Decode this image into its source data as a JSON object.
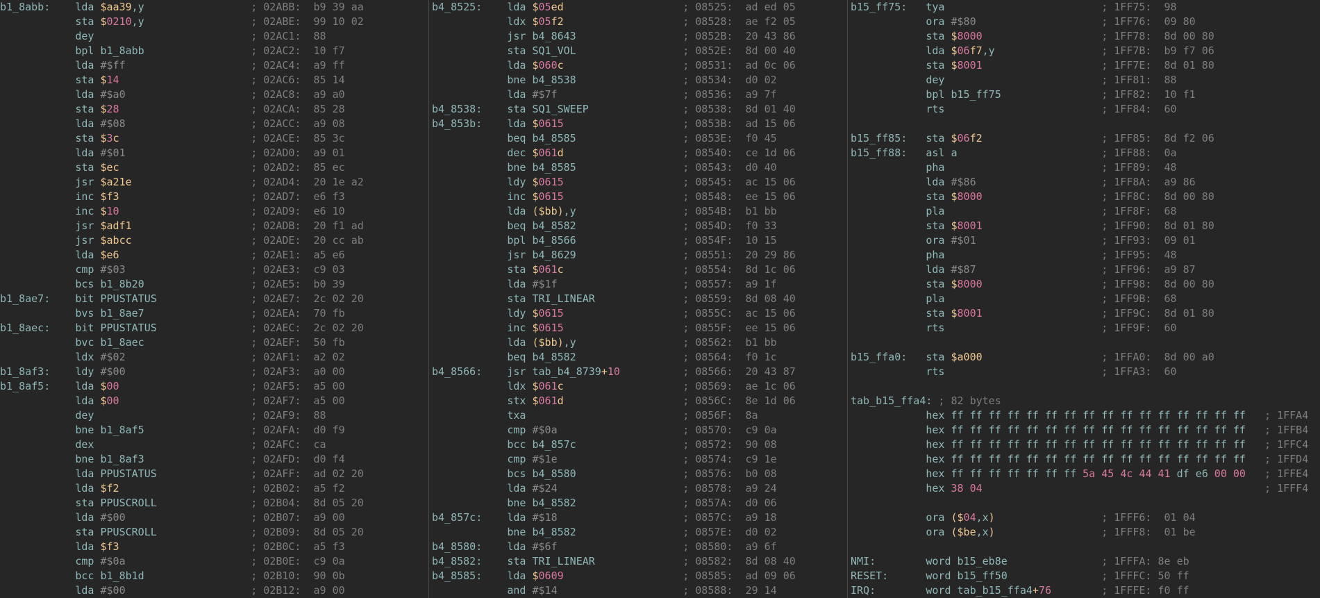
{
  "colors": {
    "background": "#262626",
    "text": "#8fb8b8",
    "address": "#f0c890",
    "number": "#d9789f",
    "comment": "#7e7e7e"
  },
  "columns": [
    {
      "lines": [
        {
          "label": "b1_8abb:",
          "op": "lda $aa39,y",
          "comment": "; 02ABB:  b9 39 aa"
        },
        {
          "op": "sta $0210,y",
          "comment": "; 02ABE:  99 10 02"
        },
        {
          "op": "dey",
          "comment": "; 02AC1:  88"
        },
        {
          "op": "bpl b1_8abb",
          "comment": "; 02AC2:  10 f7"
        },
        {
          "op": "lda #$ff",
          "comment": "; 02AC4:  a9 ff"
        },
        {
          "op": "sta $14",
          "comment": "; 02AC6:  85 14"
        },
        {
          "op": "lda #$a0",
          "comment": "; 02AC8:  a9 a0"
        },
        {
          "op": "sta $28",
          "comment": "; 02ACA:  85 28"
        },
        {
          "op": "lda #$08",
          "comment": "; 02ACC:  a9 08"
        },
        {
          "op": "sta $3c",
          "comment": "; 02ACE:  85 3c"
        },
        {
          "op": "lda #$01",
          "comment": "; 02AD0:  a9 01"
        },
        {
          "op": "sta $ec",
          "comment": "; 02AD2:  85 ec"
        },
        {
          "op": "jsr $a21e",
          "comment": "; 02AD4:  20 1e a2"
        },
        {
          "op": "inc $f3",
          "comment": "; 02AD7:  e6 f3"
        },
        {
          "op": "inc $10",
          "comment": "; 02AD9:  e6 10"
        },
        {
          "op": "jsr $adf1",
          "comment": "; 02ADB:  20 f1 ad"
        },
        {
          "op": "jsr $abcc",
          "comment": "; 02ADE:  20 cc ab"
        },
        {
          "op": "lda $e6",
          "comment": "; 02AE1:  a5 e6"
        },
        {
          "op": "cmp #$03",
          "comment": "; 02AE3:  c9 03"
        },
        {
          "op": "bcs b1_8b20",
          "comment": "; 02AE5:  b0 39"
        },
        {
          "label": "b1_8ae7:",
          "op": "bit PPUSTATUS",
          "comment": "; 02AE7:  2c 02 20"
        },
        {
          "op": "bvs b1_8ae7",
          "comment": "; 02AEA:  70 fb"
        },
        {
          "label": "b1_8aec:",
          "op": "bit PPUSTATUS",
          "comment": "; 02AEC:  2c 02 20"
        },
        {
          "op": "bvc b1_8aec",
          "comment": "; 02AEF:  50 fb"
        },
        {
          "op": "ldx #$02",
          "comment": "; 02AF1:  a2 02"
        },
        {
          "label": "b1_8af3:",
          "op": "ldy #$00",
          "comment": "; 02AF3:  a0 00"
        },
        {
          "label": "b1_8af5:",
          "op": "lda $00",
          "comment": "; 02AF5:  a5 00"
        },
        {
          "op": "lda $00",
          "comment": "; 02AF7:  a5 00"
        },
        {
          "op": "dey",
          "comment": "; 02AF9:  88"
        },
        {
          "op": "bne b1_8af5",
          "comment": "; 02AFA:  d0 f9"
        },
        {
          "op": "dex",
          "comment": "; 02AFC:  ca"
        },
        {
          "op": "bne b1_8af3",
          "comment": "; 02AFD:  d0 f4"
        },
        {
          "op": "lda PPUSTATUS",
          "comment": "; 02AFF:  ad 02 20"
        },
        {
          "op": "lda $f2",
          "comment": "; 02B02:  a5 f2"
        },
        {
          "op": "sta PPUSCROLL",
          "comment": "; 02B04:  8d 05 20"
        },
        {
          "op": "lda #$00",
          "comment": "; 02B07:  a9 00"
        },
        {
          "op": "sta PPUSCROLL",
          "comment": "; 02B09:  8d 05 20"
        },
        {
          "op": "lda $f3",
          "comment": "; 02B0C:  a5 f3"
        },
        {
          "op": "cmp #$0a",
          "comment": "; 02B0E:  c9 0a"
        },
        {
          "op": "bcc b1_8b1d",
          "comment": "; 02B10:  90 0b"
        },
        {
          "op": "lda #$00",
          "comment": "; 02B12:  a9 00"
        }
      ]
    },
    {
      "lines": [
        {
          "label": "b4_8525:",
          "op": "lda $05ed",
          "comment": "; 08525:  ad ed 05"
        },
        {
          "op": "ldx $05f2",
          "comment": "; 08528:  ae f2 05"
        },
        {
          "op": "jsr b4_8643",
          "comment": "; 0852B:  20 43 86"
        },
        {
          "op": "sta SQ1_VOL",
          "comment": "; 0852E:  8d 00 40"
        },
        {
          "op": "lda $060c",
          "comment": "; 08531:  ad 0c 06"
        },
        {
          "op": "bne b4_8538",
          "comment": "; 08534:  d0 02"
        },
        {
          "op": "lda #$7f",
          "comment": "; 08536:  a9 7f"
        },
        {
          "label": "b4_8538:",
          "op": "sta SQ1_SWEEP",
          "comment": "; 08538:  8d 01 40"
        },
        {
          "label": "b4_853b:",
          "op": "lda $0615",
          "comment": "; 0853B:  ad 15 06"
        },
        {
          "op": "beq b4_8585",
          "comment": "; 0853E:  f0 45"
        },
        {
          "op": "dec $061d",
          "comment": "; 08540:  ce 1d 06"
        },
        {
          "op": "bne b4_8585",
          "comment": "; 08543:  d0 40"
        },
        {
          "op": "ldy $0615",
          "comment": "; 08545:  ac 15 06"
        },
        {
          "op": "inc $0615",
          "comment": "; 08548:  ee 15 06"
        },
        {
          "op": "lda ($bb),y",
          "comment": "; 0854B:  b1 bb"
        },
        {
          "op": "beq b4_8582",
          "comment": "; 0854D:  f0 33"
        },
        {
          "op": "bpl b4_8566",
          "comment": "; 0854F:  10 15"
        },
        {
          "op": "jsr b4_8629",
          "comment": "; 08551:  20 29 86"
        },
        {
          "op": "sta $061c",
          "comment": "; 08554:  8d 1c 06"
        },
        {
          "op": "lda #$1f",
          "comment": "; 08557:  a9 1f"
        },
        {
          "op": "sta TRI_LINEAR",
          "comment": "; 08559:  8d 08 40"
        },
        {
          "op": "ldy $0615",
          "comment": "; 0855C:  ac 15 06"
        },
        {
          "op": "inc $0615",
          "comment": "; 0855F:  ee 15 06"
        },
        {
          "op": "lda ($bb),y",
          "comment": "; 08562:  b1 bb"
        },
        {
          "op": "beq b4_8582",
          "comment": "; 08564:  f0 1c"
        },
        {
          "label": "b4_8566:",
          "op": "jsr tab_b4_8739+10",
          "comment": "; 08566:  20 43 87"
        },
        {
          "op": "ldx $061c",
          "comment": "; 08569:  ae 1c 06"
        },
        {
          "op": "stx $061d",
          "comment": "; 0856C:  8e 1d 06"
        },
        {
          "op": "txa",
          "comment": "; 0856F:  8a"
        },
        {
          "op": "cmp #$0a",
          "comment": "; 08570:  c9 0a"
        },
        {
          "op": "bcc b4_857c",
          "comment": "; 08572:  90 08"
        },
        {
          "op": "cmp #$1e",
          "comment": "; 08574:  c9 1e"
        },
        {
          "op": "bcs b4_8580",
          "comment": "; 08576:  b0 08"
        },
        {
          "op": "lda #$24",
          "comment": "; 08578:  a9 24"
        },
        {
          "op": "bne b4_8582",
          "comment": "; 0857A:  d0 06"
        },
        {
          "label": "b4_857c:",
          "op": "lda #$18",
          "comment": "; 0857C:  a9 18"
        },
        {
          "op": "bne b4_8582",
          "comment": "; 0857E:  d0 02"
        },
        {
          "label": "b4_8580:",
          "op": "lda #$6f",
          "comment": "; 08580:  a9 6f"
        },
        {
          "label": "b4_8582:",
          "op": "sta TRI_LINEAR",
          "comment": "; 08582:  8d 08 40"
        },
        {
          "label": "b4_8585:",
          "op": "lda $0609",
          "comment": "; 08585:  ad 09 06"
        },
        {
          "op": "and #$14",
          "comment": "; 08588:  29 14"
        }
      ]
    },
    {
      "lines": [
        {
          "label": "b15_ff75:",
          "op": "tya",
          "comment": "; 1FF75:  98"
        },
        {
          "op": "ora #$80",
          "comment": "; 1FF76:  09 80"
        },
        {
          "op": "sta $8000",
          "comment": "; 1FF78:  8d 00 80"
        },
        {
          "op": "lda $06f7,y",
          "comment": "; 1FF7B:  b9 f7 06"
        },
        {
          "op": "sta $8001",
          "comment": "; 1FF7E:  8d 01 80"
        },
        {
          "op": "dey",
          "comment": "; 1FF81:  88"
        },
        {
          "op": "bpl b15_ff75",
          "comment": "; 1FF82:  10 f1"
        },
        {
          "op": "rts",
          "comment": "; 1FF84:  60"
        },
        {},
        {
          "label": "b15_ff85:",
          "op": "sta $06f2",
          "comment": "; 1FF85:  8d f2 06"
        },
        {
          "label": "b15_ff88:",
          "op": "asl a",
          "comment": "; 1FF88:  0a"
        },
        {
          "op": "pha",
          "comment": "; 1FF89:  48"
        },
        {
          "op": "lda #$86",
          "comment": "; 1FF8A:  a9 86"
        },
        {
          "op": "sta $8000",
          "comment": "; 1FF8C:  8d 00 80"
        },
        {
          "op": "pla",
          "comment": "; 1FF8F:  68"
        },
        {
          "op": "sta $8001",
          "comment": "; 1FF90:  8d 01 80"
        },
        {
          "op": "ora #$01",
          "comment": "; 1FF93:  09 01"
        },
        {
          "op": "pha",
          "comment": "; 1FF95:  48"
        },
        {
          "op": "lda #$87",
          "comment": "; 1FF96:  a9 87"
        },
        {
          "op": "sta $8000",
          "comment": "; 1FF98:  8d 00 80"
        },
        {
          "op": "pla",
          "comment": "; 1FF9B:  68"
        },
        {
          "op": "sta $8001",
          "comment": "; 1FF9C:  8d 01 80"
        },
        {
          "op": "rts",
          "comment": "; 1FF9F:  60"
        },
        {},
        {
          "label": "b15_ffa0:",
          "op": "sta $a000",
          "comment": "; 1FFA0:  8d 00 a0"
        },
        {
          "op": "rts",
          "comment": "; 1FFA3:  60"
        },
        {},
        {
          "label": "tab_b15_ffa4:",
          "note": " ; 82 bytes"
        },
        {
          "op": "hex ff ff ff ff ff ff ff ff ff ff ff ff ff ff ff ff",
          "comment": "; 1FFA4"
        },
        {
          "op": "hex ff ff ff ff ff ff ff ff ff ff ff ff ff ff ff ff",
          "comment": "; 1FFB4"
        },
        {
          "op": "hex ff ff ff ff ff ff ff ff ff ff ff ff ff ff ff ff",
          "comment": "; 1FFC4"
        },
        {
          "op": "hex ff ff ff ff ff ff ff ff ff ff ff ff ff ff ff ff",
          "comment": "; 1FFD4"
        },
        {
          "op": "hex ff ff ff ff ff ff ff 5a 45 4c 44 41 df e6 00 00",
          "comment": "; 1FFE4"
        },
        {
          "op": "hex 38 04",
          "comment": "; 1FFF4"
        },
        {},
        {
          "op": "ora ($04,x)",
          "comment": "; 1FFF6:  01 04"
        },
        {
          "op": "ora ($be,x)",
          "comment": "; 1FFF8:  01 be"
        },
        {},
        {
          "label": "NMI:",
          "op": "word b15_eb8e",
          "comment": "; 1FFFA: 8e eb"
        },
        {
          "label": "RESET:",
          "op": "word b15_ff50",
          "comment": "; 1FFFC: 50 ff"
        },
        {
          "label": "IRQ:",
          "op": "word tab_b15_ffa4+76",
          "comment": "; 1FFFE: f0 ff"
        }
      ]
    }
  ]
}
